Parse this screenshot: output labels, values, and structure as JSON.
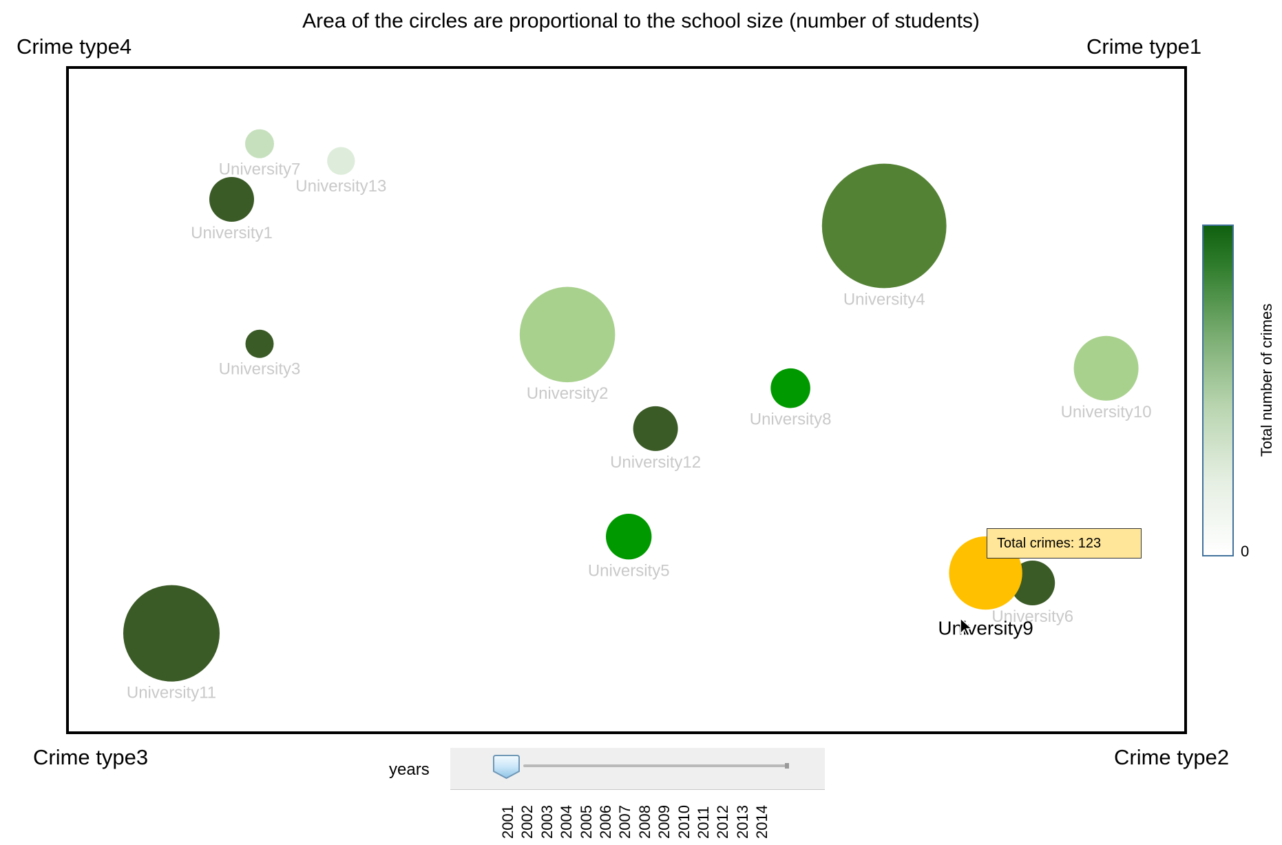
{
  "title": "Area of the circles are proportional to the school size (number of students)",
  "corners": {
    "top_left": "Crime type4",
    "top_right": "Crime type1",
    "bottom_left": "Crime type3",
    "bottom_right": "Crime type2"
  },
  "tooltip": {
    "text": "Total crimes: 123"
  },
  "colorbar": {
    "label": "Total number of crimes",
    "min_label": "0",
    "color_low": "#ffffff",
    "color_high": "#0f6010"
  },
  "slider": {
    "label": "years",
    "selected_year": "2001",
    "years": [
      "2001",
      "2002",
      "2003",
      "2004",
      "2005",
      "2006",
      "2007",
      "2008",
      "2009",
      "2010",
      "2011",
      "2012",
      "2013",
      "2014"
    ]
  },
  "chart_data": {
    "type": "scatter",
    "title": "Area of the circles are proportional to the school size (number of students)",
    "xlabel": "",
    "ylabel": "",
    "grid": false,
    "colorbar_label": "Total number of crimes",
    "highlighted": "University9",
    "points": [
      {
        "name": "University7",
        "x": 0.171,
        "y": 0.887,
        "size": 0.04,
        "color": "#c6e0bd"
      },
      {
        "name": "University13",
        "x": 0.244,
        "y": 0.861,
        "size": 0.037,
        "color": "#deeddb"
      },
      {
        "name": "University1",
        "x": 0.146,
        "y": 0.803,
        "size": 0.096,
        "color": "#3a5a26"
      },
      {
        "name": "University4",
        "x": 0.731,
        "y": 0.763,
        "size": 0.742,
        "color": "#548235"
      },
      {
        "name": "University3",
        "x": 0.171,
        "y": 0.585,
        "size": 0.038,
        "color": "#3a5a26"
      },
      {
        "name": "University2",
        "x": 0.447,
        "y": 0.599,
        "size": 0.436,
        "color": "#a9d18e"
      },
      {
        "name": "University8",
        "x": 0.647,
        "y": 0.518,
        "size": 0.075,
        "color": "#009900"
      },
      {
        "name": "University10",
        "x": 0.93,
        "y": 0.548,
        "size": 0.2,
        "color": "#a9d18e"
      },
      {
        "name": "University12",
        "x": 0.526,
        "y": 0.457,
        "size": 0.096,
        "color": "#3a5a26"
      },
      {
        "name": "University5",
        "x": 0.502,
        "y": 0.294,
        "size": 0.1,
        "color": "#009900"
      },
      {
        "name": "University9",
        "x": 0.822,
        "y": 0.239,
        "size": 0.257,
        "color": "#ffc000",
        "total_crimes": 123
      },
      {
        "name": "University6",
        "x": 0.864,
        "y": 0.224,
        "size": 0.096,
        "color": "#3a5a26"
      },
      {
        "name": "University11",
        "x": 0.092,
        "y": 0.148,
        "size": 0.444,
        "color": "#3a5a26"
      }
    ]
  }
}
